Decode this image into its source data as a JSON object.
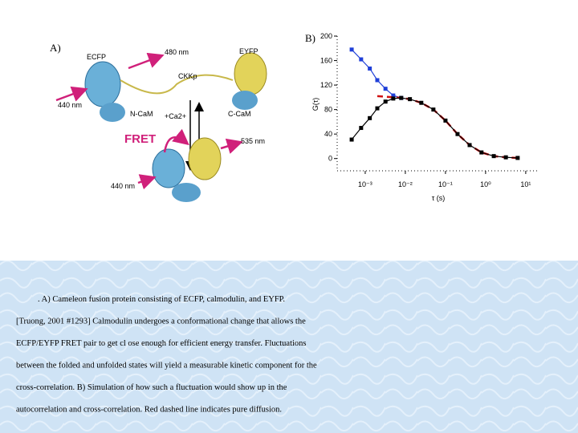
{
  "panel_a": {
    "label": "A)",
    "ecfp": "ECFP",
    "eyfp": "EYFP",
    "wavelength_480": "480 nm",
    "linker": "CKKp",
    "excitation_top": "440 nm",
    "n_cam": "N-CaM",
    "calcium": "+Ca2+",
    "c_cam": "C-CaM",
    "fret": "FRET",
    "wavelength_535": "535 nm",
    "excitation_bottom": "440 nm"
  },
  "chart_data": {
    "type": "scatter",
    "panel_label": "B)",
    "ylabel": "G(τ)",
    "xlabel": "τ (s)",
    "log_x": true,
    "xlim": [
      0.0002,
      22
    ],
    "ylim": [
      -20,
      200
    ],
    "xticks": [
      {
        "value": 0.001,
        "label": "10⁻³"
      },
      {
        "value": 0.01,
        "label": "10⁻²"
      },
      {
        "value": 0.1,
        "label": "10⁻¹"
      },
      {
        "value": 1,
        "label": "10⁰"
      },
      {
        "value": 10,
        "label": "10¹"
      }
    ],
    "yticks": [
      0,
      40,
      80,
      120,
      160,
      200
    ],
    "x": [
      0.00046,
      0.00079,
      0.0013,
      0.002,
      0.0032,
      0.005,
      0.0079,
      0.013,
      0.025,
      0.05,
      0.1,
      0.2,
      0.4,
      0.79,
      1.6,
      3.2,
      6.3
    ],
    "series": [
      {
        "color": "#1f3fd8",
        "style": "solid",
        "values": [
          178,
          162,
          147,
          128,
          114,
          103,
          99,
          null,
          null,
          null,
          null,
          null,
          null,
          null,
          null,
          null,
          null
        ]
      },
      {
        "color": "#d01010",
        "style": "dashed",
        "values": [
          null,
          null,
          null,
          102,
          101,
          100,
          99,
          97,
          91,
          80,
          62,
          40,
          22,
          10,
          4,
          2,
          1
        ]
      },
      {
        "color": "#000000",
        "style": "solid",
        "values": [
          31,
          50,
          66,
          82,
          93,
          98,
          99,
          97,
          91,
          80,
          62,
          40,
          22,
          10,
          4,
          2,
          1
        ]
      }
    ]
  },
  "caption": {
    "lines": [
      ". A) Cameleon fusion protein consisting of ECFP, calmodulin, and EYFP.",
      "[Truong, 2001 #1293] Calmodulin undergoes a conformational change that allows the",
      "ECFP/EYFP FRET pair to get cl   ose enough for efficient energy transfer. Fluctuations",
      "between the folded and unfolded states will yield a measurable kinetic component for the",
      "cross-correlation. B) Simulation of how such a fluctuation would show up in the",
      "autocorrelation and cross-correlation. Red dashed line indicates pure diffusion."
    ]
  }
}
